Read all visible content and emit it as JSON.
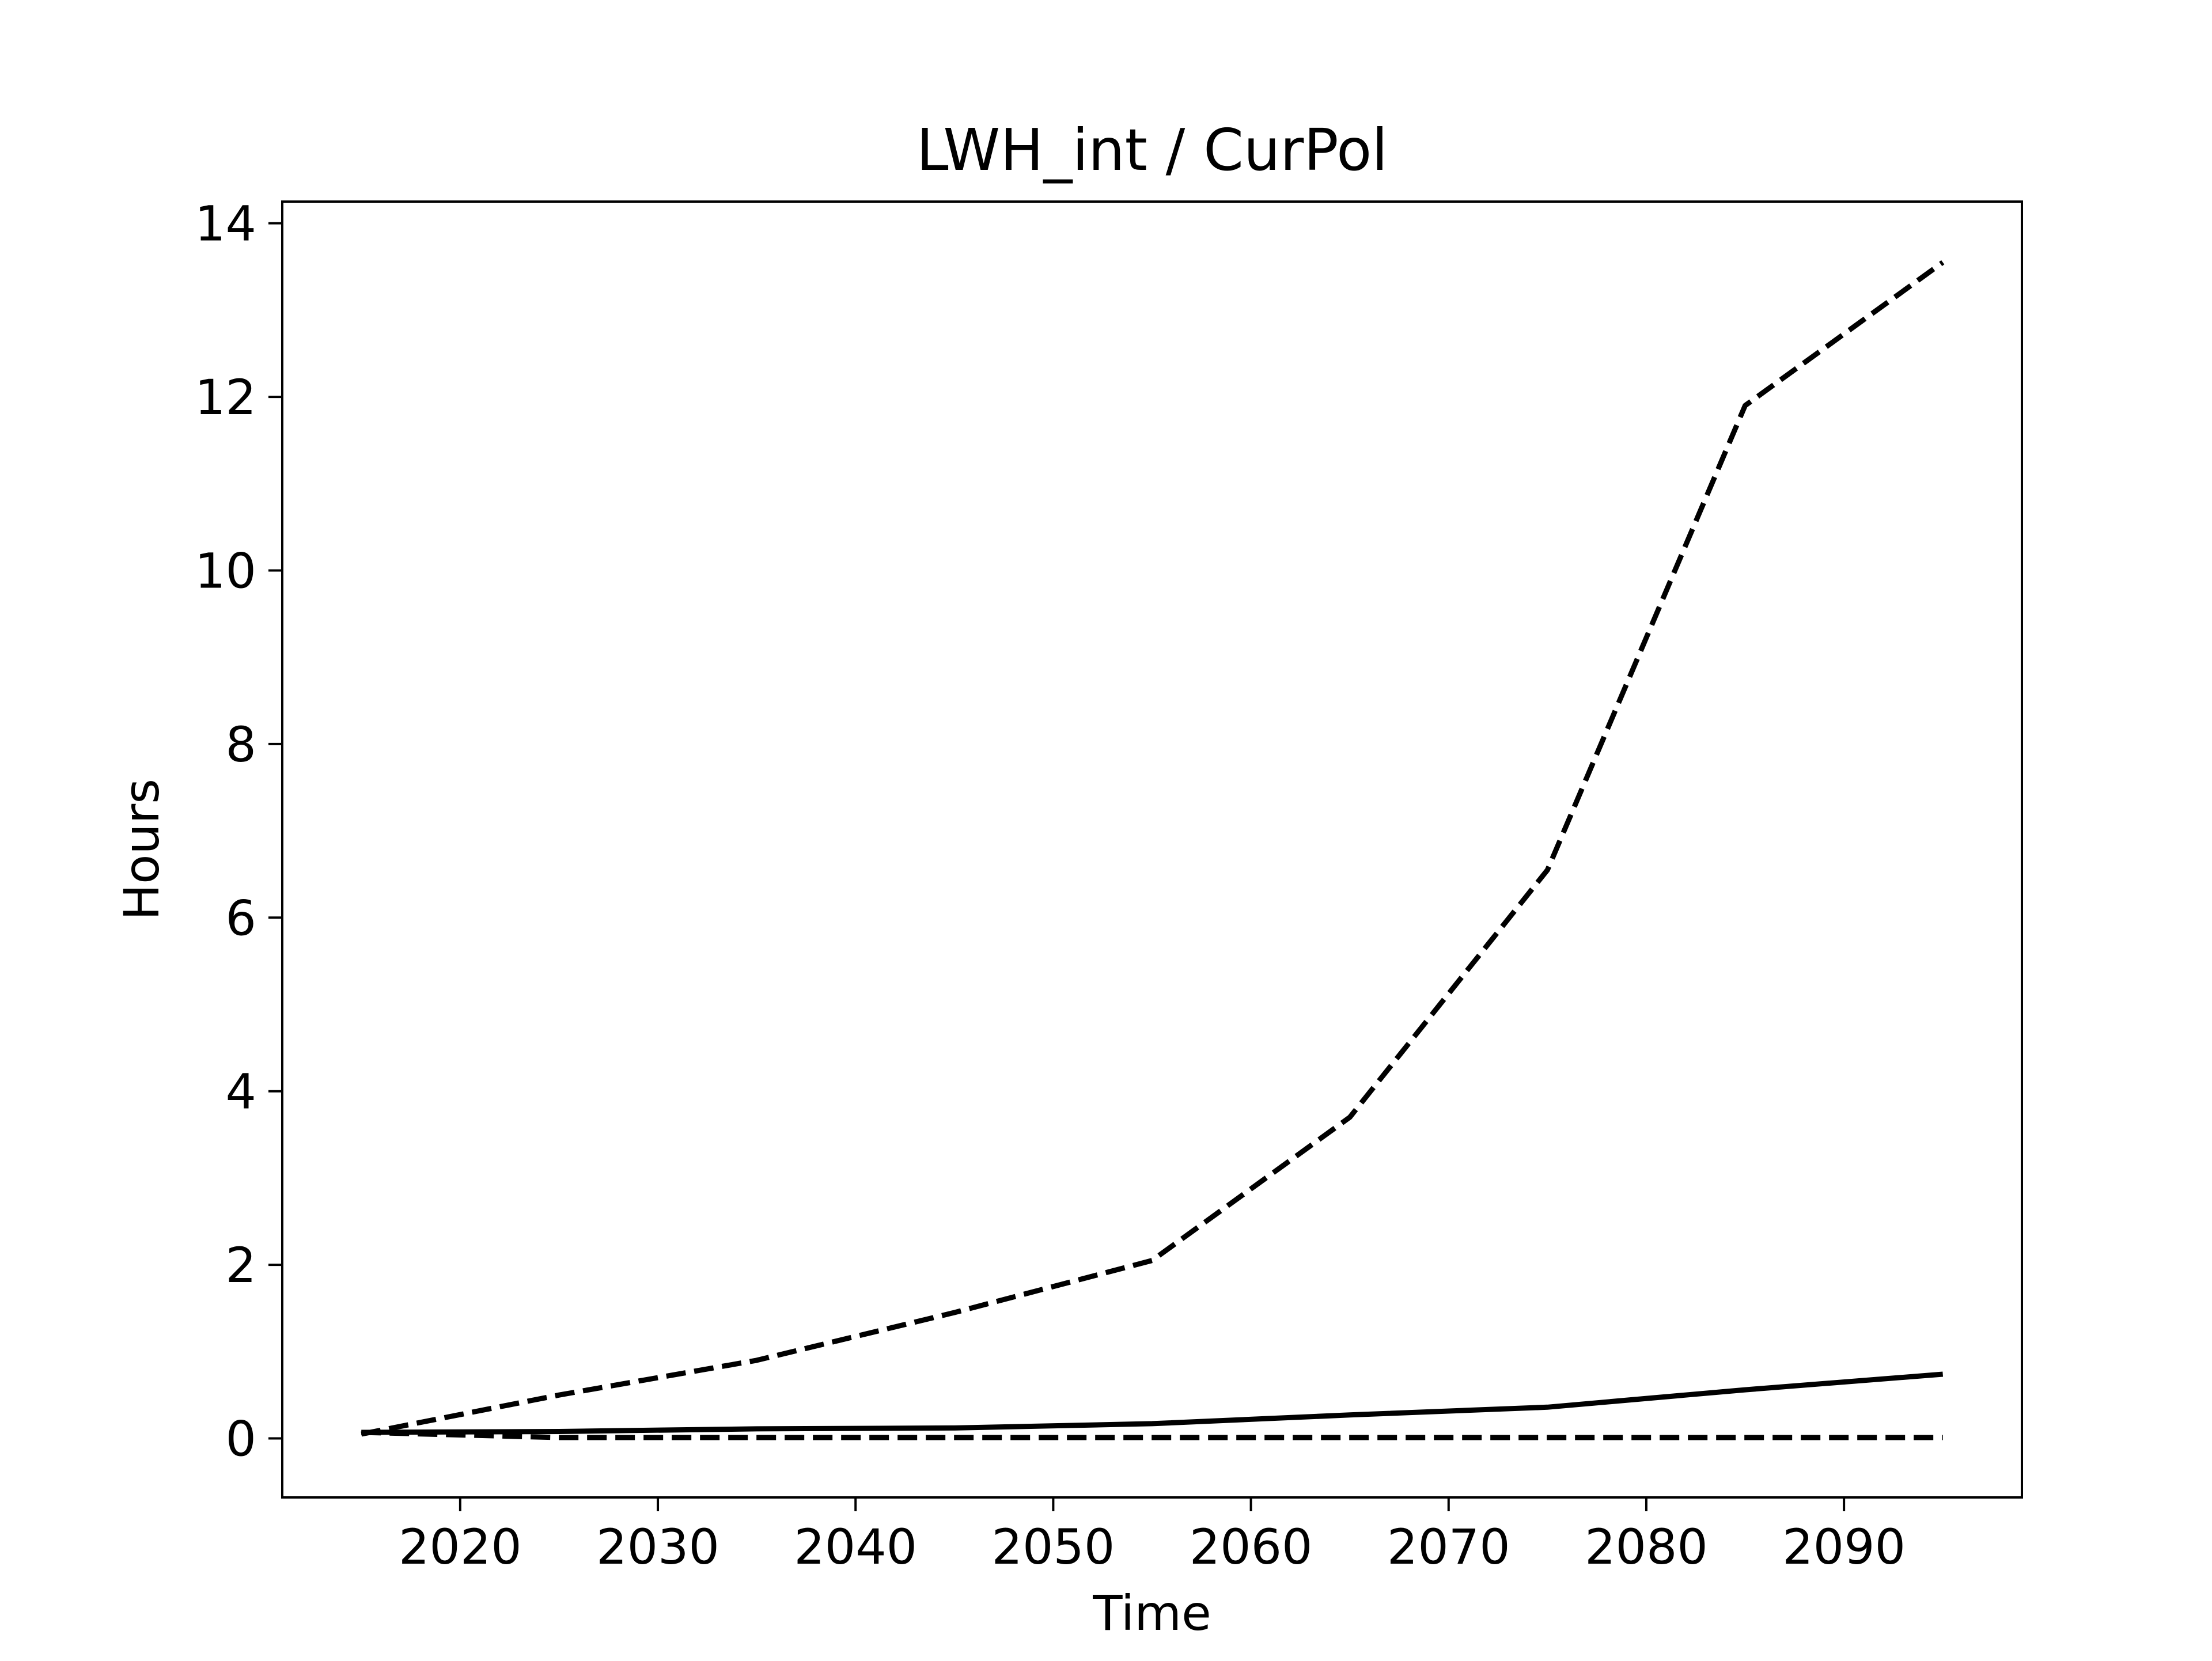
{
  "chart_data": {
    "type": "line",
    "title": "LWH_int / CurPol",
    "xlabel": "Time",
    "ylabel": "Hours",
    "xlim": [
      2011,
      2099
    ],
    "ylim": [
      -0.68,
      14.25
    ],
    "xticks": [
      2020,
      2030,
      2040,
      2050,
      2060,
      2070,
      2080,
      2090
    ],
    "yticks": [
      0,
      2,
      4,
      6,
      8,
      10,
      12,
      14
    ],
    "grid": false,
    "legend": "none",
    "colors": {
      "line": "#000000",
      "frame": "#000000",
      "background": "#ffffff"
    },
    "series": [
      {
        "style": "dashed",
        "x": [
          2015,
          2025,
          2035,
          2045,
          2055,
          2065,
          2075,
          2085,
          2095
        ],
        "y": [
          0.05,
          0.5,
          0.9,
          1.45,
          2.05,
          3.7,
          6.55,
          11.9,
          13.55
        ]
      },
      {
        "style": "solid",
        "x": [
          2015,
          2025,
          2035,
          2045,
          2055,
          2065,
          2075,
          2085,
          2095
        ],
        "y": [
          0.07,
          0.08,
          0.11,
          0.12,
          0.17,
          0.27,
          0.36,
          0.56,
          0.74
        ]
      },
      {
        "style": "dashed",
        "x": [
          2015,
          2025,
          2035,
          2045,
          2055,
          2065,
          2075,
          2085,
          2095
        ],
        "y": [
          0.07,
          0.01,
          0.01,
          0.01,
          0.01,
          0.01,
          0.01,
          0.01,
          0.01
        ]
      }
    ]
  }
}
